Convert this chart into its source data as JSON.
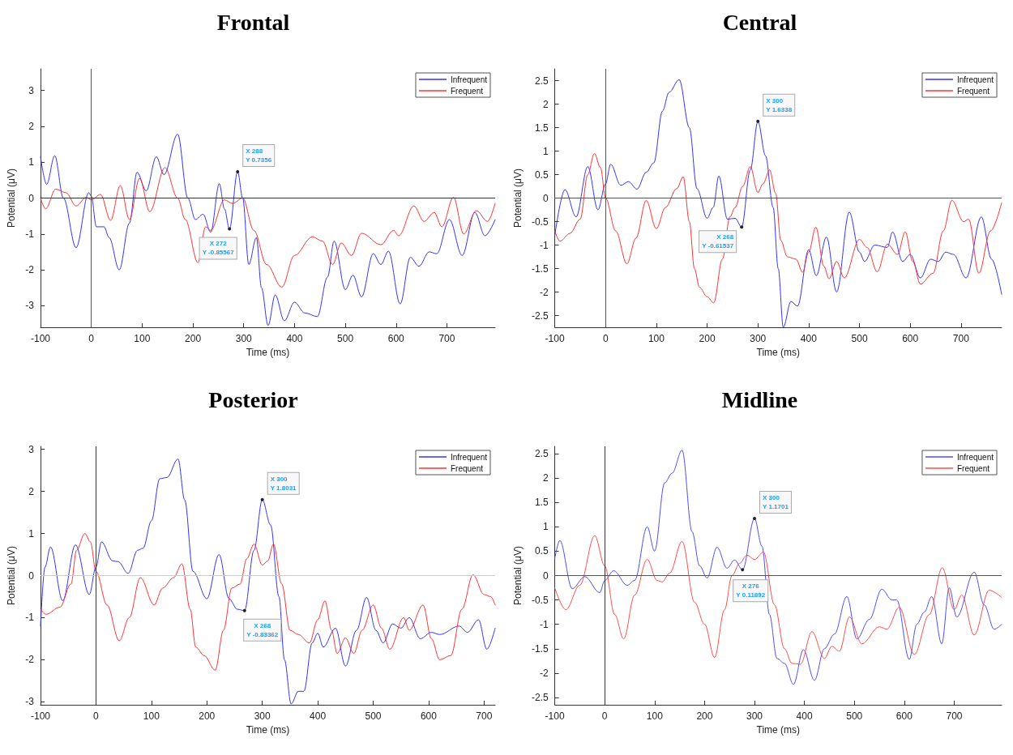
{
  "chart_data": [
    {
      "type": "line",
      "title": "Frontal",
      "xlabel": "Time (ms)",
      "ylabel": "Potential (μV)",
      "xlim": [
        -100,
        795
      ],
      "ylim": [
        -3.6,
        3.6
      ],
      "xticks": [
        -100,
        0,
        100,
        200,
        300,
        400,
        500,
        600,
        700
      ],
      "yticks": [
        -3,
        -2,
        -1,
        0,
        1,
        2,
        3
      ],
      "grid": false,
      "legend": "top right",
      "marker": "none",
      "line_style": "solid",
      "ref_lines": [
        {
          "axis": "y",
          "value": 0,
          "color": "#333333"
        },
        {
          "axis": "x",
          "value": 0,
          "color": "#555555"
        }
      ],
      "annotations": [
        {
          "text": "X 288\nY 0.7356",
          "x": 288,
          "y": 0.7356
        },
        {
          "text": "X 272\nY -0.85567",
          "x": 272,
          "y": -0.85567
        }
      ],
      "series": [
        {
          "name": "Infrequent",
          "color": "#3333ff",
          "x": [
            -100,
            -88,
            -72,
            -55,
            -30,
            -5,
            0,
            10,
            25,
            35,
            55,
            75,
            90,
            108,
            128,
            143,
            170,
            190,
            205,
            220,
            235,
            252,
            262,
            272,
            288,
            298,
            310,
            325,
            335,
            348,
            362,
            380,
            400,
            420,
            445,
            465,
            478,
            500,
            515,
            532,
            555,
            570,
            585,
            608,
            628,
            645,
            665,
            680,
            705,
            730,
            755,
            775,
            795
          ],
          "values": [
            1.15,
            0.38,
            1.18,
            0,
            -1.38,
            0.15,
            0.05,
            -0.8,
            -0.8,
            -1.1,
            -2.0,
            -0.7,
            0.72,
            0.2,
            1.15,
            0.65,
            1.78,
            0,
            -0.6,
            -0.45,
            -0.95,
            0.4,
            -0.3,
            -0.86,
            0.7356,
            0,
            -1.85,
            -1.1,
            -2.5,
            -3.55,
            -2.7,
            -3.42,
            -2.9,
            -3.2,
            -3.3,
            -2.2,
            -1.2,
            -2.55,
            -2.15,
            -2.75,
            -1.55,
            -1.85,
            -1.48,
            -2.95,
            -1.65,
            -1.9,
            -1.5,
            -1.55,
            -0.6,
            -1.6,
            -0.4,
            -1.05,
            -0.6
          ]
        },
        {
          "name": "Frequent",
          "color": "#ff3333",
          "x": [
            -100,
            -90,
            -70,
            -50,
            -30,
            -10,
            0,
            18,
            38,
            57,
            75,
            95,
            115,
            145,
            170,
            185,
            210,
            225,
            235,
            262,
            278,
            298,
            320,
            345,
            375,
            400,
            435,
            455,
            475,
            492,
            512,
            532,
            570,
            595,
            605,
            635,
            655,
            675,
            690,
            713,
            733,
            758,
            780,
            795
          ],
          "values": [
            0,
            -0.3,
            0.25,
            0.15,
            -0.22,
            0.02,
            -0.05,
            0.1,
            -0.62,
            0.35,
            -0.6,
            0.55,
            -0.38,
            0.85,
            0,
            -0.6,
            -1.8,
            -0.8,
            -0.9,
            -0.05,
            -0.15,
            0,
            -0.9,
            -1.85,
            -2.48,
            -1.6,
            -1.08,
            -1.2,
            -1.85,
            -1.25,
            -1.6,
            -0.98,
            -1.3,
            -0.9,
            -1.05,
            -0.22,
            -0.65,
            -0.4,
            -0.8,
            0.02,
            -1.0,
            -0.35,
            -0.65,
            -0.15
          ]
        }
      ]
    },
    {
      "type": "line",
      "title": "Central",
      "xlabel": "Time (ms)",
      "ylabel": "Potential (μV)",
      "xlim": [
        -100,
        780
      ],
      "ylim": [
        -2.75,
        2.75
      ],
      "xticks": [
        -100,
        0,
        100,
        200,
        300,
        400,
        500,
        600,
        700
      ],
      "yticks": [
        -2.5,
        -2,
        -1.5,
        -1,
        -0.5,
        0,
        0.5,
        1,
        1.5,
        2,
        2.5
      ],
      "grid": false,
      "legend": "top right",
      "marker": "none",
      "line_style": "solid",
      "ref_lines": [
        {
          "axis": "y",
          "value": 0,
          "color": "#555555"
        },
        {
          "axis": "x",
          "value": 0,
          "color": "#555555"
        }
      ],
      "annotations": [
        {
          "text": "X 300\nY 1.6338",
          "x": 300,
          "y": 1.6338
        },
        {
          "text": "X 268\nY -0.61537",
          "x": 268,
          "y": -0.61537
        }
      ],
      "series": [
        {
          "name": "Infrequent",
          "color": "#3333ff",
          "x": [
            -100,
            -80,
            -58,
            -35,
            -15,
            0,
            10,
            30,
            45,
            62,
            80,
            95,
            112,
            125,
            145,
            165,
            180,
            200,
            212,
            223,
            240,
            255,
            268,
            285,
            300,
            315,
            330,
            340,
            350,
            365,
            378,
            400,
            415,
            435,
            455,
            480,
            500,
            510,
            530,
            555,
            565,
            585,
            600,
            620,
            640,
            655,
            670,
            685,
            710,
            740,
            760,
            780
          ],
          "values": [
            -0.8,
            0.18,
            -0.4,
            0.67,
            -0.25,
            0.3,
            0.72,
            0.27,
            0.35,
            0.19,
            0.55,
            0.75,
            1.85,
            2.25,
            2.52,
            1.5,
            0.2,
            -0.43,
            -0.2,
            0.47,
            -0.45,
            -0.43,
            -0.61537,
            0.6,
            1.6338,
            0.9,
            -0.2,
            -1.5,
            -2.75,
            -2.2,
            -2.3,
            -1.1,
            -1.65,
            -0.83,
            -2.0,
            -0.3,
            -1.15,
            -1.35,
            -1.0,
            -1.05,
            -0.72,
            -1.35,
            -1.2,
            -1.7,
            -1.3,
            -1.35,
            -1.15,
            -1.2,
            -1.7,
            -0.4,
            -1.3,
            -2.05
          ]
        },
        {
          "name": "Frequent",
          "color": "#ff3333",
          "x": [
            -100,
            -90,
            -70,
            -50,
            -35,
            -22,
            -10,
            0,
            20,
            42,
            60,
            80,
            100,
            118,
            140,
            153,
            165,
            175,
            185,
            200,
            213,
            230,
            245,
            255,
            270,
            285,
            300,
            310,
            323,
            335,
            345,
            358,
            375,
            388,
            400,
            414,
            430,
            440,
            455,
            470,
            500,
            515,
            535,
            555,
            575,
            590,
            605,
            620,
            645,
            665,
            682,
            705,
            715,
            735,
            758,
            780
          ],
          "values": [
            -0.7,
            -0.92,
            -0.75,
            -0.45,
            0.5,
            0.95,
            0.65,
            0,
            -0.7,
            -1.4,
            -0.85,
            -0.05,
            -0.65,
            -0.2,
            0.2,
            0.45,
            -0.5,
            -1.5,
            -1.9,
            -2.1,
            -2.23,
            -1.3,
            -0.4,
            -0.2,
            0.25,
            0.67,
            0.12,
            0.3,
            0.6,
            0.1,
            -0.9,
            -1.25,
            -1.3,
            -1.58,
            -1.15,
            -0.62,
            -1.45,
            -1.72,
            -1.35,
            -1.7,
            -0.88,
            -1.05,
            -1.57,
            -0.98,
            -1.2,
            -0.72,
            -1.35,
            -1.83,
            -1.6,
            -0.7,
            -0.05,
            -0.5,
            -0.45,
            -1.6,
            -0.7,
            -0.1
          ]
        }
      ]
    },
    {
      "type": "line",
      "title": "Posterior",
      "xlabel": "Time (ms)",
      "ylabel": "Potential (μV)",
      "xlim": [
        -100,
        720
      ],
      "ylim": [
        -3.07,
        3.07
      ],
      "xticks": [
        -100,
        0,
        100,
        200,
        300,
        400,
        500,
        600,
        700
      ],
      "yticks": [
        -3,
        -2,
        -1,
        0,
        1,
        2,
        3
      ],
      "grid": false,
      "legend": "top right",
      "marker": "none",
      "line_style": "solid",
      "ref_lines": [
        {
          "axis": "y",
          "value": 0,
          "color": "#cccccc"
        },
        {
          "axis": "x",
          "value": 0,
          "color": "#333333"
        }
      ],
      "annotations": [
        {
          "text": "X 300\nY 1.8031",
          "x": 300,
          "y": 1.8031
        },
        {
          "text": "X 268\nY -0.83362",
          "x": 268,
          "y": -0.83362
        }
      ],
      "series": [
        {
          "name": "Infrequent",
          "color": "#3333ff",
          "x": [
            -100,
            -92,
            -82,
            -60,
            -37,
            -12,
            0,
            10,
            30,
            40,
            58,
            75,
            85,
            100,
            115,
            128,
            148,
            160,
            175,
            200,
            222,
            240,
            255,
            268,
            285,
            300,
            315,
            330,
            340,
            352,
            365,
            375,
            390,
            400,
            410,
            432,
            450,
            470,
            488,
            505,
            518,
            535,
            550,
            565,
            585,
            605,
            620,
            655,
            670,
            690,
            705,
            720
          ],
          "values": [
            -1.2,
            0.2,
            0.68,
            -0.6,
            0.73,
            -0.45,
            0.2,
            0.8,
            0.35,
            0.33,
            0.05,
            0.6,
            0.65,
            1.3,
            2.3,
            2.33,
            2.77,
            1.8,
            0.1,
            -0.55,
            0.5,
            -0.55,
            -0.8,
            -0.83362,
            0.6,
            1.8031,
            1.2,
            -0.5,
            -2.0,
            -3.05,
            -2.75,
            -2.75,
            -1.6,
            -1.37,
            -1.7,
            -1.25,
            -2.15,
            -1.3,
            -0.52,
            -1.3,
            -1.6,
            -1.15,
            -1.25,
            -1.0,
            -1.5,
            -1.35,
            -1.4,
            -1.2,
            -1.35,
            -1.05,
            -1.75,
            -1.25
          ]
        },
        {
          "name": "Frequent",
          "color": "#ff3333",
          "x": [
            -100,
            -90,
            -65,
            -45,
            -35,
            -20,
            -10,
            0,
            20,
            42,
            60,
            80,
            105,
            120,
            140,
            155,
            170,
            180,
            195,
            215,
            230,
            245,
            260,
            272,
            285,
            300,
            310,
            320,
            335,
            350,
            365,
            385,
            400,
            413,
            425,
            435,
            450,
            465,
            480,
            500,
            515,
            530,
            555,
            565,
            590,
            605,
            620,
            640,
            660,
            680,
            700,
            712,
            720
          ],
          "values": [
            -0.8,
            -0.92,
            -0.75,
            -0.2,
            0.6,
            1.0,
            0.8,
            0.1,
            -0.7,
            -1.55,
            -1.0,
            -0.05,
            -0.7,
            -0.3,
            -0.05,
            0.28,
            -0.8,
            -1.7,
            -1.9,
            -2.25,
            -1.3,
            -0.3,
            -0.2,
            0.4,
            0.75,
            0.25,
            0.35,
            0.75,
            -0.2,
            -1.3,
            -1.4,
            -1.6,
            -1.05,
            -0.6,
            -1.3,
            -1.85,
            -1.48,
            -1.85,
            -1.3,
            -0.7,
            -1.25,
            -1.75,
            -1.0,
            -1.3,
            -0.7,
            -1.5,
            -2.0,
            -1.9,
            -0.8,
            0.02,
            -0.45,
            -0.5,
            -0.7
          ]
        }
      ]
    },
    {
      "type": "line",
      "title": "Midline",
      "xlabel": "Time (ms)",
      "ylabel": "Potential (μV)",
      "xlim": [
        -100,
        795
      ],
      "ylim": [
        -2.65,
        2.65
      ],
      "xticks": [
        -100,
        0,
        100,
        200,
        300,
        400,
        500,
        600,
        700
      ],
      "yticks": [
        -2.5,
        -2,
        -1.5,
        -1,
        -0.5,
        0,
        0.5,
        1,
        1.5,
        2,
        2.5
      ],
      "grid": false,
      "legend": "top right",
      "marker": "none",
      "line_style": "solid",
      "ref_lines": [
        {
          "axis": "y",
          "value": 0,
          "color": "#555555"
        },
        {
          "axis": "x",
          "value": 0,
          "color": "#333333"
        }
      ],
      "annotations": [
        {
          "text": "X 300\nY 1.1701",
          "x": 300,
          "y": 1.1701
        },
        {
          "text": "X 276\nY 0.11892",
          "x": 276,
          "y": 0.11892
        }
      ],
      "series": [
        {
          "name": "Infrequent",
          "color": "#4d4dff",
          "x": [
            -100,
            -90,
            -65,
            -40,
            -10,
            0,
            18,
            45,
            60,
            85,
            100,
            120,
            135,
            155,
            175,
            190,
            205,
            225,
            245,
            260,
            276,
            300,
            315,
            330,
            345,
            360,
            378,
            398,
            420,
            440,
            460,
            485,
            505,
            530,
            555,
            575,
            585,
            610,
            625,
            640,
            655,
            675,
            690,
            705,
            740,
            760,
            780,
            795
          ],
          "values": [
            0.35,
            0.72,
            -0.27,
            -0.02,
            -0.35,
            -0.1,
            0.1,
            -0.2,
            -0.1,
            1.0,
            0.5,
            1.9,
            2.1,
            2.57,
            0.9,
            0.2,
            -0.05,
            0.58,
            0.15,
            0.32,
            0.11892,
            1.1701,
            0.6,
            -0.8,
            -1.7,
            -1.8,
            -2.23,
            -1.52,
            -2.15,
            -1.5,
            -1.2,
            -0.43,
            -1.3,
            -0.9,
            -0.28,
            -0.5,
            -0.5,
            -1.72,
            -1.0,
            -0.75,
            -0.43,
            -1.4,
            -0.25,
            -0.85,
            0.07,
            -0.6,
            -1.1,
            -1.0
          ]
        },
        {
          "name": "Frequent",
          "color": "#ff4d4d",
          "x": [
            -100,
            -78,
            -50,
            -20,
            0,
            20,
            38,
            60,
            85,
            105,
            115,
            130,
            155,
            180,
            200,
            220,
            240,
            255,
            270,
            285,
            300,
            318,
            340,
            360,
            375,
            392,
            415,
            440,
            455,
            470,
            490,
            515,
            550,
            565,
            590,
            620,
            650,
            676,
            700,
            715,
            740,
            770,
            795
          ],
          "values": [
            -0.25,
            -0.7,
            -0.2,
            0.82,
            0.2,
            -0.8,
            -1.3,
            -0.4,
            0.33,
            -0.1,
            -0.13,
            0.05,
            0.7,
            -0.55,
            -1.0,
            -1.68,
            -0.7,
            0,
            0.25,
            0.42,
            0.33,
            0.48,
            -0.6,
            -1.5,
            -1.8,
            -1.82,
            -1.15,
            -1.7,
            -1.45,
            -1.55,
            -0.85,
            -1.4,
            -1.05,
            -1.1,
            -0.65,
            -1.62,
            -0.8,
            0.16,
            -0.7,
            -0.4,
            -1.22,
            -0.3,
            -0.45
          ]
        }
      ]
    }
  ]
}
